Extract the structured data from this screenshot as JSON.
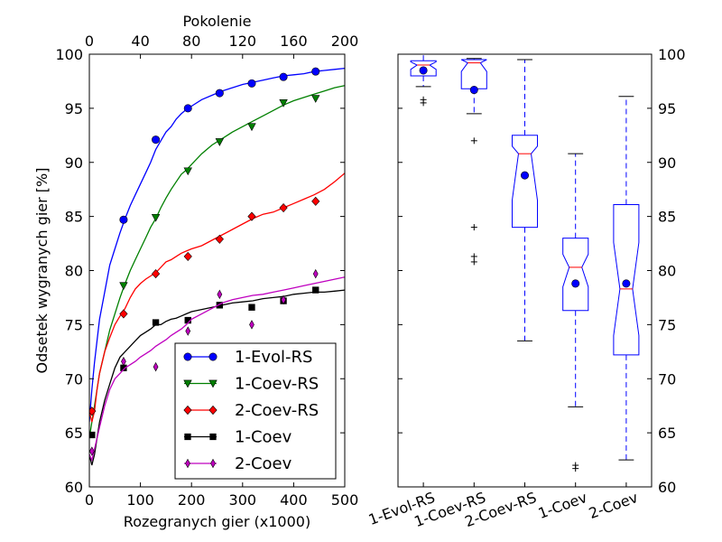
{
  "chart_data": [
    {
      "type": "line",
      "xlabel": "Rozegranych gier (x1000)",
      "x2label": "Pokolenie",
      "ylabel": "Odsetek wygranych gier [%]",
      "xlim": [
        0,
        500
      ],
      "x2lim": [
        0,
        200
      ],
      "ylim": [
        60,
        100
      ],
      "xticks": [
        "0",
        "100",
        "200",
        "300",
        "400",
        "500"
      ],
      "x2ticks": [
        "0",
        "40",
        "80",
        "120",
        "160",
        "200"
      ],
      "yticks": [
        "60",
        "65",
        "70",
        "75",
        "80",
        "85",
        "90",
        "95",
        "100"
      ],
      "grid": false,
      "legend_position": "lower-right",
      "series": [
        {
          "name": "1-Evol-RS",
          "color": "#0000ff",
          "marker": "circle",
          "points": [
            [
              0,
              66
            ],
            [
              5,
              69
            ],
            [
              10,
              71.5
            ],
            [
              15,
              73.5
            ],
            [
              20,
              75.5
            ],
            [
              30,
              78
            ],
            [
              40,
              80.5
            ],
            [
              50,
              82
            ],
            [
              60,
              83.5
            ],
            [
              70,
              84.8
            ],
            [
              80,
              86
            ],
            [
              90,
              87
            ],
            [
              100,
              88
            ],
            [
              110,
              89
            ],
            [
              120,
              90
            ],
            [
              130,
              91.2
            ],
            [
              140,
              92
            ],
            [
              150,
              92.8
            ],
            [
              160,
              93.3
            ],
            [
              170,
              94
            ],
            [
              180,
              94.5
            ],
            [
              190,
              94.9
            ],
            [
              200,
              95.2
            ],
            [
              220,
              95.8
            ],
            [
              240,
              96.2
            ],
            [
              260,
              96.6
            ],
            [
              280,
              96.9
            ],
            [
              300,
              97.2
            ],
            [
              320,
              97.4
            ],
            [
              340,
              97.6
            ],
            [
              360,
              97.8
            ],
            [
              380,
              98
            ],
            [
              400,
              98.1
            ],
            [
              420,
              98.2
            ],
            [
              440,
              98.4
            ],
            [
              460,
              98.5
            ],
            [
              480,
              98.6
            ],
            [
              500,
              98.7
            ]
          ],
          "marker_points": [
            [
              67,
              84.7
            ],
            [
              130,
              92.1
            ],
            [
              193,
              95
            ],
            [
              255,
              96.4
            ],
            [
              318,
              97.3
            ],
            [
              380,
              97.9
            ],
            [
              443,
              98.4
            ]
          ]
        },
        {
          "name": "1-Coev-RS",
          "color": "#008000",
          "marker": "triangle-down",
          "points": [
            [
              0,
              64.5
            ],
            [
              5,
              66
            ],
            [
              10,
              67.5
            ],
            [
              15,
              69
            ],
            [
              20,
              70.5
            ],
            [
              30,
              72.5
            ],
            [
              40,
              74.5
            ],
            [
              50,
              76
            ],
            [
              60,
              77.5
            ],
            [
              70,
              78.8
            ],
            [
              80,
              80
            ],
            [
              90,
              81
            ],
            [
              100,
              82
            ],
            [
              110,
              83
            ],
            [
              120,
              84
            ],
            [
              130,
              84.8
            ],
            [
              140,
              85.8
            ],
            [
              150,
              86.7
            ],
            [
              160,
              87.5
            ],
            [
              170,
              88.2
            ],
            [
              180,
              88.9
            ],
            [
              190,
              89.3
            ],
            [
              200,
              89.8
            ],
            [
              220,
              90.8
            ],
            [
              240,
              91.6
            ],
            [
              260,
              92.2
            ],
            [
              280,
              92.8
            ],
            [
              300,
              93.3
            ],
            [
              320,
              93.8
            ],
            [
              340,
              94.3
            ],
            [
              360,
              94.8
            ],
            [
              380,
              95.3
            ],
            [
              400,
              95.7
            ],
            [
              420,
              96
            ],
            [
              440,
              96.3
            ],
            [
              460,
              96.6
            ],
            [
              480,
              96.9
            ],
            [
              500,
              97.1
            ]
          ],
          "marker_points": [
            [
              67,
              78.6
            ],
            [
              130,
              84.9
            ],
            [
              193,
              89.2
            ],
            [
              255,
              91.9
            ],
            [
              318,
              93.3
            ],
            [
              380,
              95.5
            ],
            [
              443,
              95.9
            ]
          ]
        },
        {
          "name": "2-Coev-RS",
          "color": "#ff0000",
          "marker": "diamond",
          "points": [
            [
              0,
              67
            ],
            [
              5,
              66
            ],
            [
              10,
              67
            ],
            [
              15,
              69
            ],
            [
              20,
              70.5
            ],
            [
              30,
              72.5
            ],
            [
              40,
              73.8
            ],
            [
              50,
              75
            ],
            [
              60,
              75.8
            ],
            [
              70,
              76.5
            ],
            [
              80,
              77.5
            ],
            [
              90,
              78.3
            ],
            [
              100,
              78.8
            ],
            [
              110,
              79.2
            ],
            [
              120,
              79.5
            ],
            [
              130,
              79.8
            ],
            [
              140,
              80.3
            ],
            [
              150,
              80.8
            ],
            [
              160,
              81
            ],
            [
              170,
              81.3
            ],
            [
              180,
              81.6
            ],
            [
              190,
              81.8
            ],
            [
              200,
              82
            ],
            [
              220,
              82.3
            ],
            [
              240,
              82.8
            ],
            [
              260,
              83.3
            ],
            [
              280,
              83.8
            ],
            [
              300,
              84.3
            ],
            [
              320,
              84.8
            ],
            [
              340,
              85.2
            ],
            [
              360,
              85.4
            ],
            [
              380,
              85.8
            ],
            [
              400,
              86.2
            ],
            [
              420,
              86.6
            ],
            [
              440,
              87
            ],
            [
              460,
              87.5
            ],
            [
              480,
              88.2
            ],
            [
              500,
              89
            ]
          ],
          "marker_points": [
            [
              5,
              67
            ],
            [
              67,
              76
            ],
            [
              130,
              79.7
            ],
            [
              193,
              81.3
            ],
            [
              255,
              82.9
            ],
            [
              318,
              85
            ],
            [
              380,
              85.8
            ],
            [
              443,
              86.4
            ]
          ]
        },
        {
          "name": "1-Coev",
          "color": "#000000",
          "marker": "square",
          "points": [
            [
              0,
              63
            ],
            [
              5,
              62
            ],
            [
              10,
              63
            ],
            [
              15,
              64.5
            ],
            [
              20,
              66
            ],
            [
              30,
              68
            ],
            [
              40,
              69.5
            ],
            [
              50,
              71
            ],
            [
              60,
              72
            ],
            [
              70,
              72.5
            ],
            [
              80,
              73
            ],
            [
              90,
              73.5
            ],
            [
              100,
              74
            ],
            [
              110,
              74.3
            ],
            [
              120,
              74.6
            ],
            [
              130,
              75
            ],
            [
              140,
              75
            ],
            [
              150,
              75.3
            ],
            [
              160,
              75.5
            ],
            [
              170,
              75.6
            ],
            [
              180,
              75.8
            ],
            [
              190,
              76
            ],
            [
              200,
              76.2
            ],
            [
              220,
              76.4
            ],
            [
              240,
              76.6
            ],
            [
              260,
              76.8
            ],
            [
              280,
              77
            ],
            [
              300,
              77.1
            ],
            [
              320,
              77.2
            ],
            [
              340,
              77.4
            ],
            [
              360,
              77.5
            ],
            [
              380,
              77.6
            ],
            [
              400,
              77.8
            ],
            [
              420,
              77.9
            ],
            [
              440,
              78
            ],
            [
              460,
              78
            ],
            [
              480,
              78.1
            ],
            [
              500,
              78.2
            ]
          ],
          "marker_points": [
            [
              5,
              64.8
            ],
            [
              67,
              71
            ],
            [
              130,
              75.2
            ],
            [
              193,
              75.4
            ],
            [
              255,
              76.8
            ],
            [
              318,
              76.6
            ],
            [
              380,
              77.2
            ],
            [
              443,
              78.2
            ]
          ]
        },
        {
          "name": "2-Coev",
          "color": "#bf00bf",
          "marker": "thin-diamond",
          "points": [
            [
              0,
              63
            ],
            [
              5,
              62.5
            ],
            [
              10,
              63.5
            ],
            [
              15,
              64.5
            ],
            [
              20,
              65.5
            ],
            [
              30,
              67.5
            ],
            [
              40,
              69
            ],
            [
              50,
              70
            ],
            [
              60,
              70.5
            ],
            [
              70,
              71
            ],
            [
              80,
              71.3
            ],
            [
              90,
              71.6
            ],
            [
              100,
              72
            ],
            [
              110,
              72.3
            ],
            [
              120,
              72.6
            ],
            [
              130,
              73
            ],
            [
              140,
              73.3
            ],
            [
              150,
              73.6
            ],
            [
              160,
              74
            ],
            [
              170,
              74.3
            ],
            [
              180,
              74.6
            ],
            [
              190,
              75
            ],
            [
              200,
              75.5
            ],
            [
              220,
              76
            ],
            [
              240,
              76.5
            ],
            [
              260,
              77
            ],
            [
              280,
              77.3
            ],
            [
              300,
              77.5
            ],
            [
              320,
              77.7
            ],
            [
              340,
              77.8
            ],
            [
              360,
              78
            ],
            [
              380,
              78.2
            ],
            [
              400,
              78.4
            ],
            [
              420,
              78.6
            ],
            [
              440,
              78.8
            ],
            [
              460,
              79
            ],
            [
              480,
              79.2
            ],
            [
              500,
              79.4
            ]
          ],
          "marker_points": [
            [
              5,
              63.3
            ],
            [
              67,
              71.6
            ],
            [
              130,
              71.1
            ],
            [
              193,
              74.4
            ],
            [
              255,
              77.8
            ],
            [
              318,
              75
            ],
            [
              380,
              77.3
            ],
            [
              443,
              79.7
            ]
          ]
        }
      ]
    },
    {
      "type": "boxplot",
      "ylim": [
        60,
        100
      ],
      "yticks": [
        "60",
        "65",
        "70",
        "75",
        "80",
        "85",
        "90",
        "95",
        "100"
      ],
      "categories": [
        "1-Evol-RS",
        "1-Coev-RS",
        "2-Coev-RS",
        "1-Coev",
        "2-Coev"
      ],
      "notched": true,
      "box_color": "#0000ff",
      "median_color": "#ff0000",
      "mean_color": "#0000ff",
      "boxes": [
        {
          "label": "1-Evol-RS",
          "whisker_low": 97,
          "q1": 98,
          "notch_low": 98.6,
          "median": 99,
          "notch_high": 99.3,
          "q3": 99.4,
          "whisker_high": 100,
          "mean": 98.5,
          "outliers": [
            95.5,
            95.8
          ]
        },
        {
          "label": "1-Coev-RS",
          "whisker_low": 94.5,
          "q1": 96.8,
          "notch_low": 98.4,
          "median": 99.2,
          "notch_high": 99.5,
          "q3": 99.5,
          "whisker_high": 99.6,
          "mean": 96.7,
          "outliers": [
            92,
            84,
            81.3,
            80.8
          ]
        },
        {
          "label": "2-Coev-RS",
          "whisker_low": 73.5,
          "q1": 84,
          "notch_low": 86.5,
          "median": 90.8,
          "notch_high": 91.5,
          "q3": 92.5,
          "whisker_high": 99.5,
          "mean": 88.8,
          "outliers": []
        },
        {
          "label": "1-Coev",
          "whisker_low": 67.4,
          "q1": 76.3,
          "notch_low": 78.5,
          "median": 80.3,
          "notch_high": 81.5,
          "q3": 83,
          "whisker_high": 90.8,
          "mean": 78.8,
          "outliers": [
            61.7,
            62
          ]
        },
        {
          "label": "2-Coev",
          "whisker_low": 62.5,
          "q1": 72.2,
          "notch_low": 74,
          "median": 78.3,
          "notch_high": 82.6,
          "q3": 86.1,
          "whisker_high": 96.1,
          "mean": 78.8,
          "outliers": []
        }
      ]
    }
  ]
}
